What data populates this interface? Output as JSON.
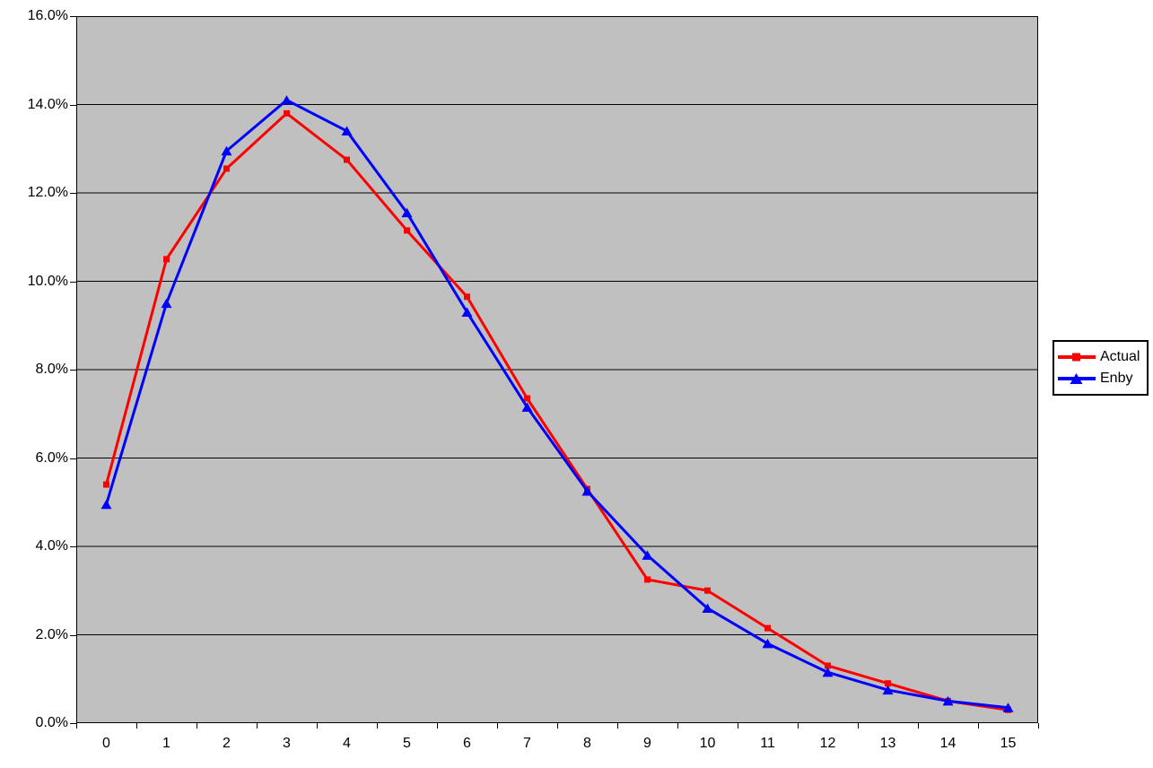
{
  "page": {
    "background": "#FFFFFF",
    "text_color": "#000000"
  },
  "chart_data": {
    "type": "line",
    "title": "",
    "xlabel": "",
    "ylabel": "",
    "value_format": "percent",
    "categories": [
      "0",
      "1",
      "2",
      "3",
      "4",
      "5",
      "6",
      "7",
      "8",
      "9",
      "10",
      "11",
      "12",
      "13",
      "14",
      "15"
    ],
    "series": [
      {
        "name": "Actual",
        "color": "#FF0000",
        "marker": "square",
        "values": [
          5.4,
          10.5,
          12.55,
          13.8,
          12.75,
          11.15,
          9.65,
          7.35,
          5.3,
          3.25,
          3.0,
          2.15,
          1.3,
          0.9,
          0.5,
          0.3
        ]
      },
      {
        "name": "Enby",
        "color": "#0000FF",
        "marker": "triangle",
        "values": [
          4.95,
          9.5,
          12.95,
          14.1,
          13.4,
          11.55,
          9.3,
          7.15,
          5.25,
          3.8,
          2.6,
          1.8,
          1.15,
          0.75,
          0.5,
          0.35
        ]
      }
    ],
    "ylim": [
      0,
      16
    ],
    "ytick_step": 2,
    "ytick_labels": [
      "16.0%",
      "14.0%",
      "12.0%",
      "10.0%",
      "8.0%",
      "6.0%",
      "4.0%",
      "2.0%",
      "0.0%"
    ],
    "grid": "horizontal",
    "gridline_color": "#000000",
    "plot_background": "#C0C0C0",
    "legend_position": "right"
  }
}
